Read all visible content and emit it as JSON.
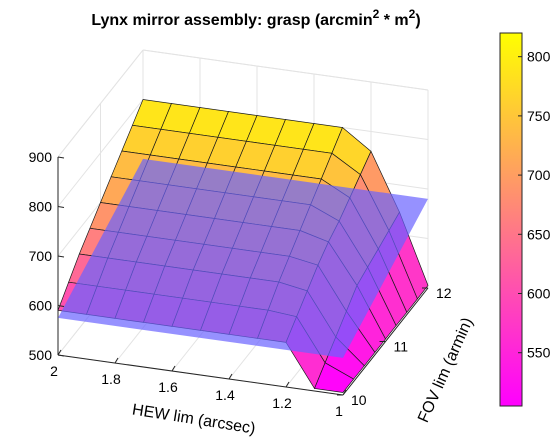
{
  "chart_data": {
    "type": "surface3d",
    "title": "Lynx mirror assembly: grasp (arcmin",
    "title_sup1": "2",
    "title_mid": " * m",
    "title_sup2": "2",
    "title_end": ")",
    "xlabel": "HEW lim (arcsec)",
    "ylabel": "FOV lim (armin)",
    "zlabel": "",
    "xlim": [
      1,
      2
    ],
    "ylim": [
      10,
      12
    ],
    "zlim": [
      500,
      900
    ],
    "x_ticks": [
      "2",
      "1.8",
      "1.6",
      "1.4",
      "1.2",
      "1"
    ],
    "y_ticks": [
      "10",
      "11",
      "12"
    ],
    "z_ticks": [
      "500",
      "600",
      "700",
      "800",
      "900"
    ],
    "grid": true,
    "colormap": "spring",
    "colorbar": {
      "location": "right",
      "range": [
        505,
        820
      ],
      "ticks": [
        "550",
        "600",
        "650",
        "700",
        "750",
        "800"
      ]
    },
    "hew_values": [
      1.0,
      1.1,
      1.2,
      1.3,
      1.4,
      1.5,
      1.6,
      1.7,
      1.8,
      1.9,
      2.0
    ],
    "fov_values": [
      10.0,
      10.25,
      10.5,
      10.75,
      11.0,
      11.25,
      11.5,
      11.75,
      12.0
    ],
    "grasp_surface": [
      [
        505,
        505,
        505,
        505,
        505,
        505,
        505,
        505,
        505
      ],
      [
        505,
        530,
        555,
        580,
        605,
        615,
        625,
        635,
        645
      ],
      [
        590,
        615,
        640,
        665,
        685,
        700,
        720,
        740,
        760
      ],
      [
        590,
        620,
        650,
        675,
        700,
        725,
        750,
        775,
        800
      ],
      [
        590,
        620,
        650,
        675,
        700,
        725,
        750,
        775,
        800
      ],
      [
        590,
        620,
        650,
        675,
        700,
        725,
        750,
        775,
        800
      ],
      [
        590,
        620,
        650,
        675,
        700,
        725,
        750,
        775,
        800
      ],
      [
        590,
        620,
        650,
        675,
        700,
        725,
        750,
        775,
        800
      ],
      [
        590,
        620,
        650,
        675,
        700,
        725,
        750,
        775,
        800
      ],
      [
        590,
        620,
        650,
        675,
        700,
        725,
        750,
        775,
        800
      ],
      [
        590,
        620,
        650,
        675,
        700,
        725,
        750,
        775,
        800
      ]
    ],
    "constraint_plane": {
      "color": "#6a63ff",
      "hew": [
        1.0,
        2.0
      ],
      "fov": [
        10.0,
        12.0
      ],
      "z": [
        [
          575,
          680
        ],
        [
          575,
          680
        ]
      ]
    }
  }
}
